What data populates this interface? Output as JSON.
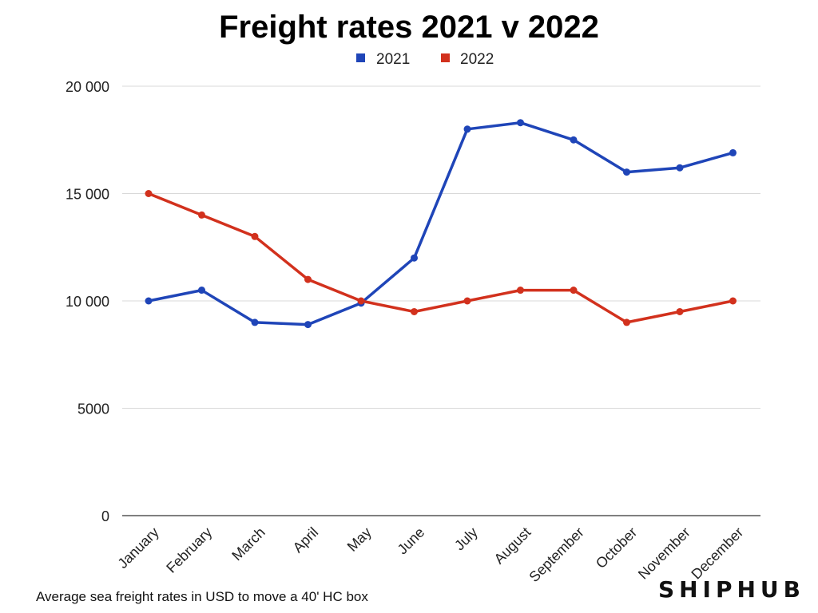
{
  "chart_data": {
    "type": "line",
    "title": "Freight rates 2021 v 2022",
    "categories": [
      "January",
      "February",
      "March",
      "April",
      "May",
      "June",
      "July",
      "August",
      "September",
      "October",
      "November",
      "December"
    ],
    "series": [
      {
        "name": "2021",
        "color": "#1f45b8",
        "values": [
          10000,
          10500,
          9000,
          8900,
          9900,
          12000,
          18000,
          18300,
          17500,
          16000,
          16200,
          16900
        ]
      },
      {
        "name": "2022",
        "color": "#d2311d",
        "values": [
          15000,
          14000,
          13000,
          11000,
          10000,
          9500,
          10000,
          10500,
          10500,
          9000,
          9500,
          10000
        ]
      }
    ],
    "ylim": [
      0,
      20000
    ],
    "yticks": [
      0,
      5000,
      10000,
      15000,
      20000
    ],
    "ytick_labels": [
      "0",
      "5000",
      "10 000",
      "15 000",
      "20 000"
    ],
    "grid": true,
    "legend": "top-center"
  },
  "caption": "Average sea freight rates in USD to move a 40' HC box",
  "brand": "SHIPHUB"
}
